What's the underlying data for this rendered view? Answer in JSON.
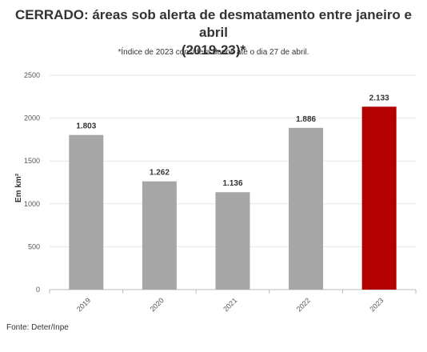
{
  "header": {
    "title_line1": "CERRADO: áreas sob alerta de desmatamento entre janeiro e abril",
    "title_line2": "(2019-23)*",
    "subtitle": "*Índice de 2023 considera dados até o dia 27 de abril."
  },
  "footer": {
    "source": "Fonte: Deter/Inpe"
  },
  "colors": {
    "normal": "#a6a6a6",
    "highlight": "#b30000",
    "grid": "#e6e6e6"
  },
  "chart_data": {
    "type": "bar",
    "title": "CERRADO: áreas sob alerta de desmatamento entre janeiro e abril (2019-23)*",
    "categories": [
      "2019",
      "2020",
      "2021",
      "2022",
      "2023"
    ],
    "values": [
      1803,
      1262,
      1136,
      1886,
      2133
    ],
    "value_labels": [
      "1.803",
      "1.262",
      "1.136",
      "1.886",
      "2.133"
    ],
    "highlight_index": 4,
    "ylabel": "Em km²",
    "xlabel": "",
    "ylim": [
      0,
      2500
    ],
    "yticks": [
      0,
      500,
      1000,
      1500,
      2000,
      2500
    ],
    "grid": true,
    "legend": "none"
  }
}
